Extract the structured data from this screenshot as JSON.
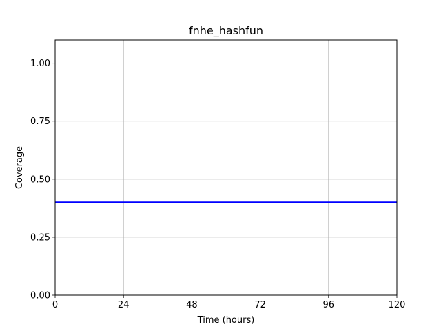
{
  "chart_data": {
    "type": "line",
    "title": "fnhe_hashfun",
    "xlabel": "Time (hours)",
    "ylabel": "Coverage",
    "xlim": [
      0,
      120
    ],
    "ylim": [
      0,
      1.1
    ],
    "xticks": [
      0,
      24,
      48,
      72,
      96,
      120
    ],
    "xtick_labels": [
      "0",
      "24",
      "48",
      "72",
      "96",
      "120"
    ],
    "yticks": [
      0,
      0.25,
      0.5,
      0.75,
      1.0
    ],
    "ytick_labels": [
      "0.00",
      "0.25",
      "0.50",
      "0.75",
      "1.00"
    ],
    "grid": true,
    "series": [
      {
        "color": "#0000ff",
        "x": [
          0,
          120
        ],
        "y": [
          0.4,
          0.4
        ]
      }
    ]
  }
}
